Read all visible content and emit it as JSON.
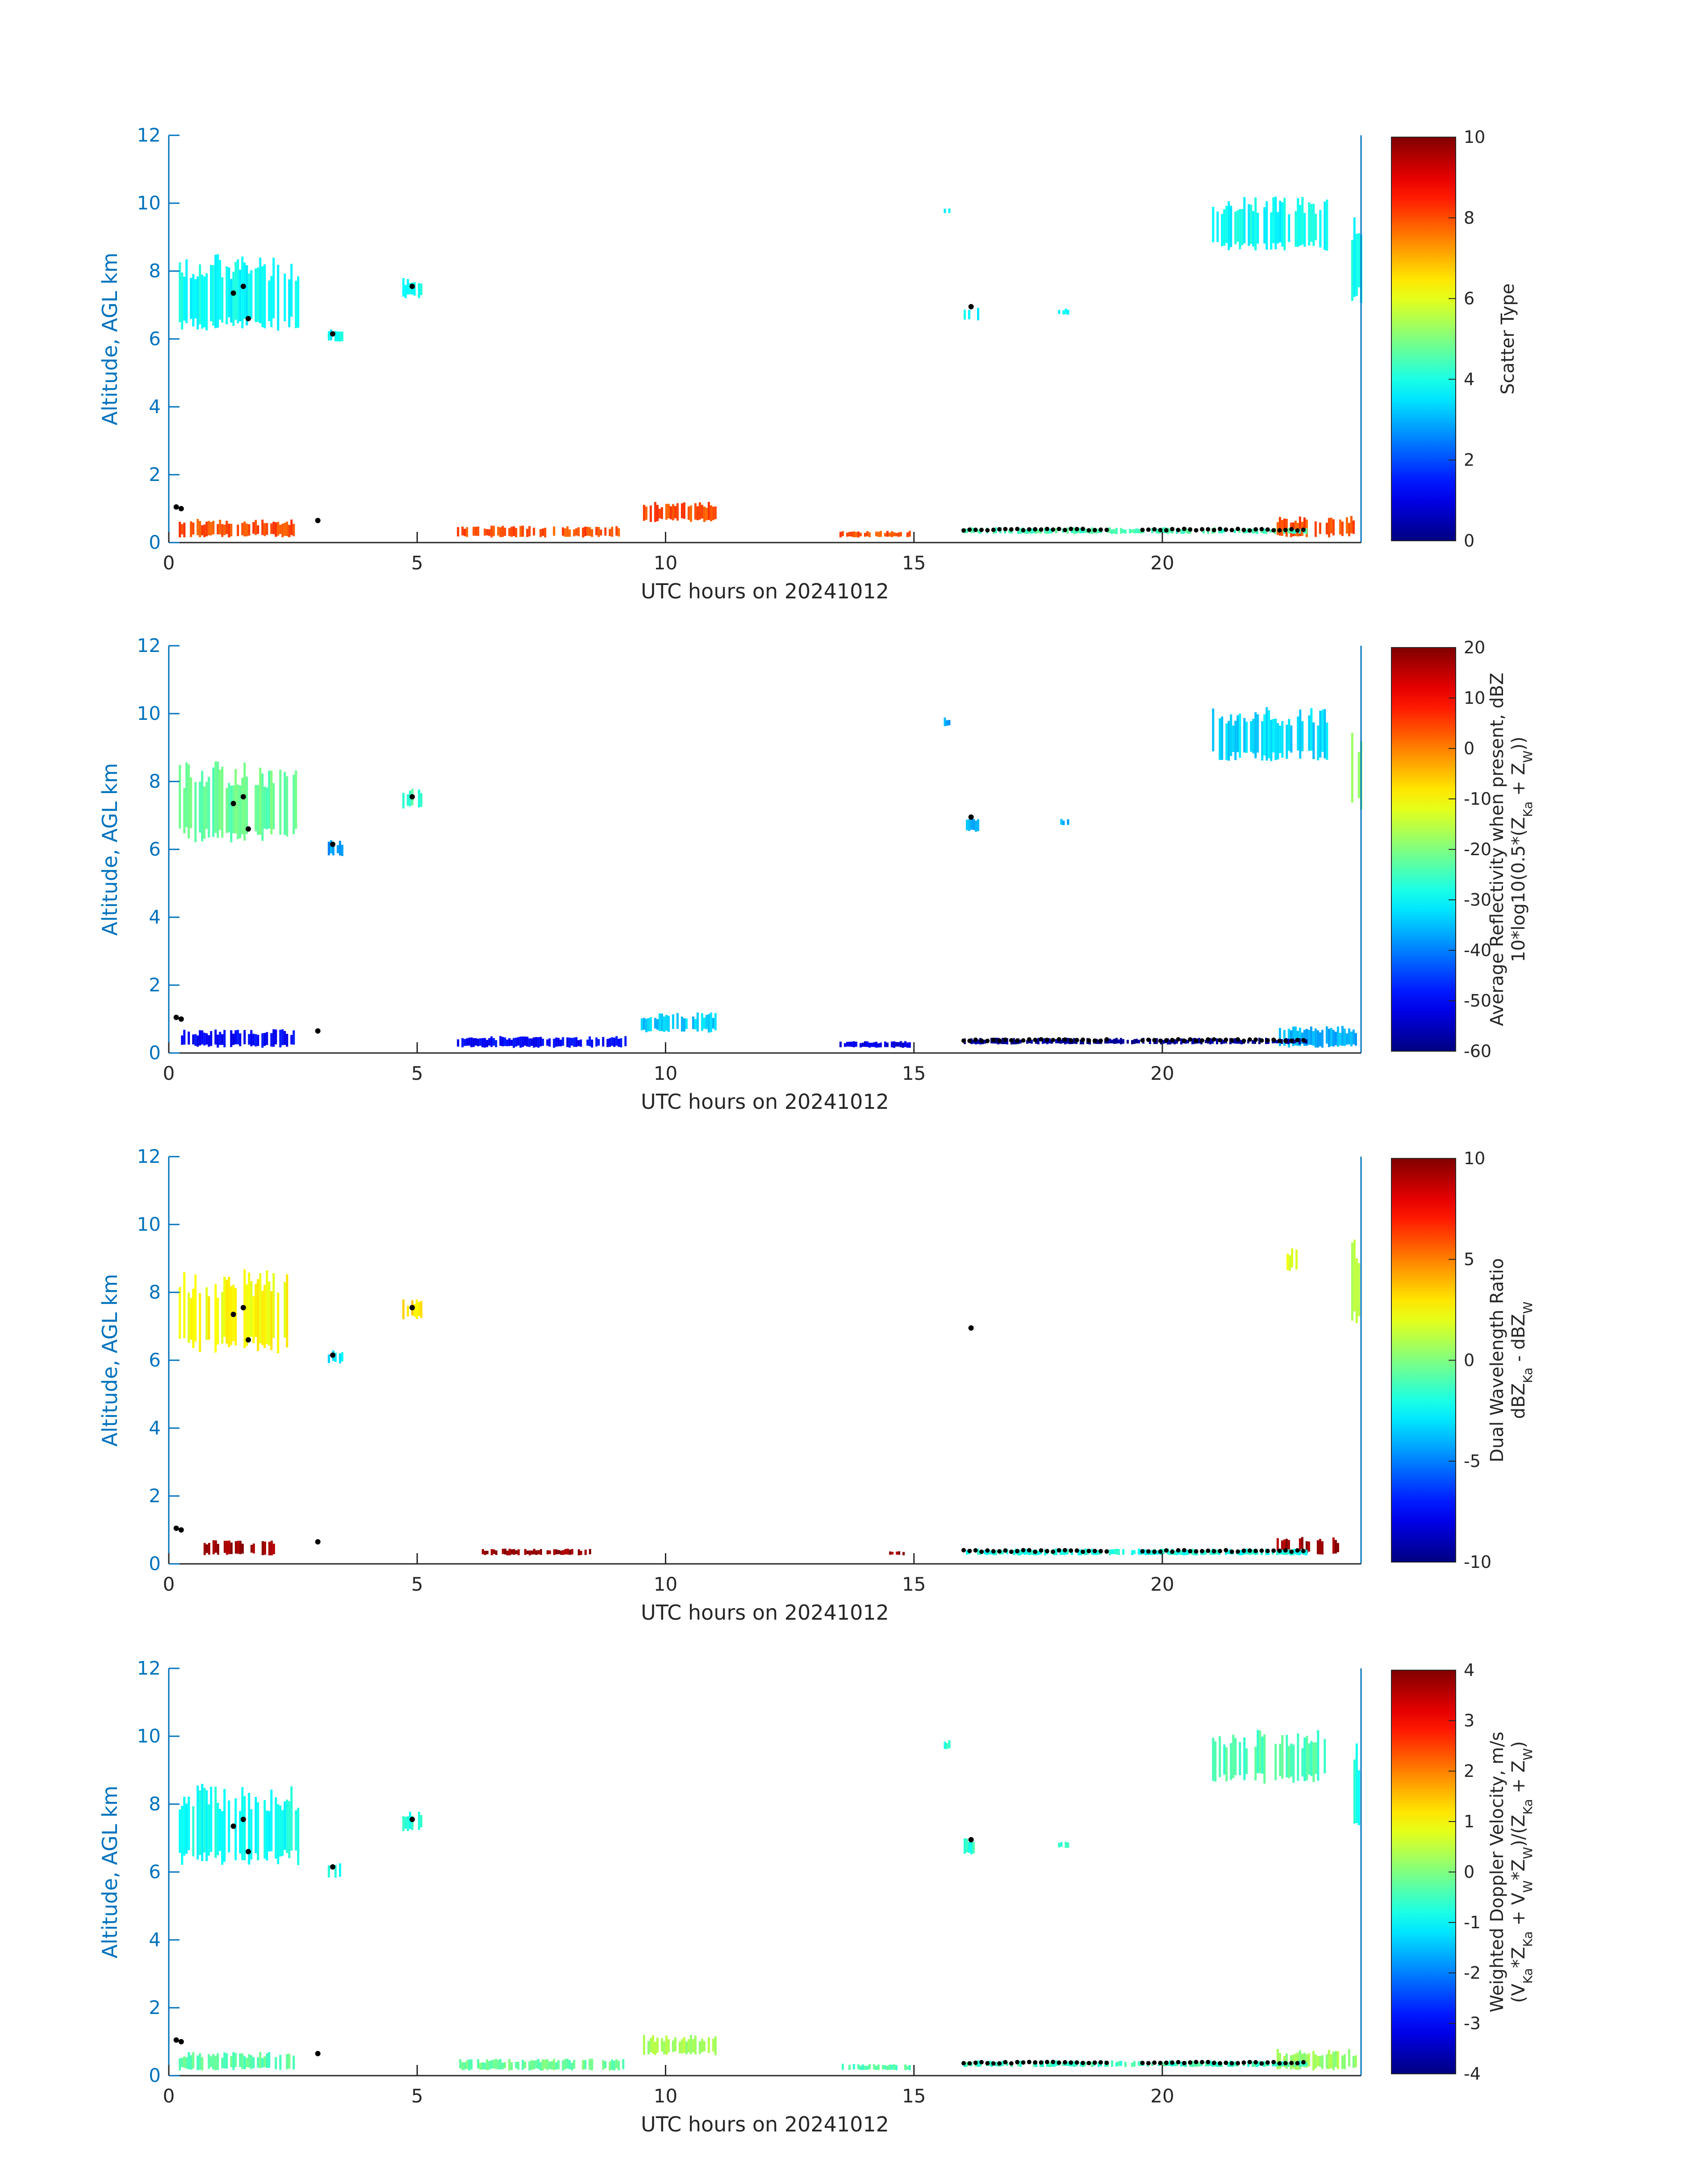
{
  "figure": {
    "xlabel": "UTC hours on 20241012",
    "ylabel": "Altitude, AGL km",
    "axis_color": "#0072BD"
  },
  "chart_data": [
    {
      "type": "heatmap",
      "id": "scatter-type",
      "xlim": [
        0,
        24
      ],
      "ylim": [
        0,
        12
      ],
      "x_ticks": [
        0,
        5,
        10,
        15,
        20
      ],
      "y_ticks": [
        0,
        2,
        4,
        6,
        8,
        10,
        12
      ],
      "xlabel": "UTC hours on 20241012",
      "ylabel": "Altitude, AGL km",
      "colorbar": {
        "min": 0,
        "max": 10,
        "ticks": [
          0,
          2,
          4,
          6,
          8,
          10
        ],
        "label_lines": [
          "Scatter Type"
        ]
      },
      "regions": [
        {
          "t": [
            0.2,
            2.6
          ],
          "z": [
            6.2,
            8.5
          ],
          "value": 3.8
        },
        {
          "t": [
            3.2,
            3.5
          ],
          "z": [
            5.9,
            6.3
          ],
          "value": 3.8
        },
        {
          "t": [
            4.7,
            5.1
          ],
          "z": [
            7.2,
            7.8
          ],
          "value": 3.8
        },
        {
          "t": [
            15.6,
            15.7
          ],
          "z": [
            9.7,
            9.9
          ],
          "value": 3.8
        },
        {
          "t": [
            16.0,
            16.3
          ],
          "z": [
            6.5,
            7.0
          ],
          "value": 3.8
        },
        {
          "t": [
            17.9,
            18.1
          ],
          "z": [
            6.7,
            6.9
          ],
          "value": 3.8
        },
        {
          "t": [
            21.0,
            23.3
          ],
          "z": [
            8.6,
            10.2
          ],
          "value": 3.8
        },
        {
          "t": [
            23.8,
            24.0
          ],
          "z": [
            7.0,
            9.8
          ],
          "value": 3.8
        },
        {
          "t": [
            0.2,
            2.5
          ],
          "z": [
            0.15,
            0.7
          ],
          "value": 8.0
        },
        {
          "t": [
            5.8,
            9.2
          ],
          "z": [
            0.15,
            0.5
          ],
          "value": 8.0
        },
        {
          "t": [
            9.5,
            11.0
          ],
          "z": [
            0.6,
            1.2
          ],
          "value": 8.0
        },
        {
          "t": [
            13.5,
            14.9
          ],
          "z": [
            0.15,
            0.35
          ],
          "value": 8.0
        },
        {
          "t": [
            22.3,
            23.9
          ],
          "z": [
            0.15,
            0.8
          ],
          "value": 8.0
        },
        {
          "t": [
            16.0,
            22.9
          ],
          "z": [
            0.25,
            0.45
          ],
          "value": 4.5
        }
      ]
    },
    {
      "type": "heatmap",
      "id": "average-reflectivity",
      "xlim": [
        0,
        24
      ],
      "ylim": [
        0,
        12
      ],
      "x_ticks": [
        0,
        5,
        10,
        15,
        20
      ],
      "y_ticks": [
        0,
        2,
        4,
        6,
        8,
        10,
        12
      ],
      "xlabel": "UTC hours on 20241012",
      "ylabel": "Altitude, AGL km",
      "colorbar": {
        "min": -60,
        "max": 20,
        "ticks": [
          -60,
          -50,
          -40,
          -30,
          -20,
          -10,
          0,
          10,
          20
        ],
        "label_lines": [
          "Average Reflectivity when present, dBZ",
          "10*log10(0.5*(Z_Ka + Z_W))"
        ]
      },
      "regions": [
        {
          "t": [
            0.2,
            2.6
          ],
          "z": [
            6.2,
            8.6
          ],
          "value": -22
        },
        {
          "t": [
            3.2,
            3.5
          ],
          "z": [
            5.8,
            6.3
          ],
          "value": -38
        },
        {
          "t": [
            4.7,
            5.1
          ],
          "z": [
            7.2,
            7.8
          ],
          "value": -25
        },
        {
          "t": [
            15.6,
            15.7
          ],
          "z": [
            9.6,
            9.9
          ],
          "value": -36
        },
        {
          "t": [
            16.0,
            16.3
          ],
          "z": [
            6.5,
            7.0
          ],
          "value": -36
        },
        {
          "t": [
            17.9,
            18.1
          ],
          "z": [
            6.7,
            6.9
          ],
          "value": -36
        },
        {
          "t": [
            21.0,
            23.3
          ],
          "z": [
            8.6,
            10.2
          ],
          "value": -33
        },
        {
          "t": [
            23.8,
            24.0
          ],
          "z": [
            7.0,
            9.8
          ],
          "value": -20
        },
        {
          "t": [
            0.2,
            2.5
          ],
          "z": [
            0.15,
            0.7
          ],
          "value": -50
        },
        {
          "t": [
            5.8,
            9.2
          ],
          "z": [
            0.15,
            0.5
          ],
          "value": -50
        },
        {
          "t": [
            9.5,
            11.0
          ],
          "z": [
            0.6,
            1.2
          ],
          "value": -34
        },
        {
          "t": [
            13.5,
            14.9
          ],
          "z": [
            0.15,
            0.35
          ],
          "value": -52
        },
        {
          "t": [
            22.3,
            23.9
          ],
          "z": [
            0.15,
            0.8
          ],
          "value": -36
        },
        {
          "t": [
            16.0,
            22.9
          ],
          "z": [
            0.25,
            0.45
          ],
          "value": -58
        }
      ]
    },
    {
      "type": "heatmap",
      "id": "dual-wavelength-ratio",
      "xlim": [
        0,
        24
      ],
      "ylim": [
        0,
        12
      ],
      "x_ticks": [
        0,
        5,
        10,
        15,
        20
      ],
      "y_ticks": [
        0,
        2,
        4,
        6,
        8,
        10,
        12
      ],
      "xlabel": "UTC hours on 20241012",
      "ylabel": "Altitude, AGL km",
      "colorbar": {
        "min": -10,
        "max": 10,
        "ticks": [
          -10,
          -5,
          0,
          5,
          10
        ],
        "label_lines": [
          "Dual Wavelength Ratio",
          "dBZ_Ka - dBZ_W"
        ]
      },
      "regions": [
        {
          "t": [
            0.2,
            2.4
          ],
          "z": [
            6.2,
            8.7
          ],
          "value": 2.5
        },
        {
          "t": [
            3.2,
            3.5
          ],
          "z": [
            5.9,
            6.3
          ],
          "value": -3
        },
        {
          "t": [
            4.7,
            5.1
          ],
          "z": [
            7.2,
            7.8
          ],
          "value": 3
        },
        {
          "t": [
            22.5,
            22.7
          ],
          "z": [
            8.6,
            9.3
          ],
          "value": 2
        },
        {
          "t": [
            23.8,
            24.0
          ],
          "z": [
            7.0,
            9.6
          ],
          "value": 1
        },
        {
          "t": [
            0.7,
            2.1
          ],
          "z": [
            0.25,
            0.7
          ],
          "value": 9.5
        },
        {
          "t": [
            6.3,
            8.5
          ],
          "z": [
            0.25,
            0.45
          ],
          "value": 9.5
        },
        {
          "t": [
            14.5,
            14.8
          ],
          "z": [
            0.25,
            0.4
          ],
          "value": 9.5
        },
        {
          "t": [
            22.3,
            23.6
          ],
          "z": [
            0.25,
            0.8
          ],
          "value": 9.5
        },
        {
          "t": [
            16.0,
            22.9
          ],
          "z": [
            0.25,
            0.45
          ],
          "value": -2
        }
      ]
    },
    {
      "type": "heatmap",
      "id": "weighted-doppler-velocity",
      "xlim": [
        0,
        24
      ],
      "ylim": [
        0,
        12
      ],
      "x_ticks": [
        0,
        5,
        10,
        15,
        20
      ],
      "y_ticks": [
        0,
        2,
        4,
        6,
        8,
        10,
        12
      ],
      "xlabel": "UTC hours on 20241012",
      "ylabel": "Altitude, AGL km",
      "colorbar": {
        "min": -4,
        "max": 4,
        "ticks": [
          -4,
          -3,
          -2,
          -1,
          0,
          1,
          2,
          3,
          4
        ],
        "label_lines": [
          "Weighted Doppler Velocity, m/s",
          "(V_Ka*Z_Ka + V_W*Z_W)/(Z_Ka + Z_W)"
        ]
      },
      "regions": [
        {
          "t": [
            0.2,
            2.6
          ],
          "z": [
            6.2,
            8.6
          ],
          "value": -0.9
        },
        {
          "t": [
            3.2,
            3.5
          ],
          "z": [
            5.8,
            6.3
          ],
          "value": -0.9
        },
        {
          "t": [
            4.7,
            5.1
          ],
          "z": [
            7.2,
            7.8
          ],
          "value": -0.7
        },
        {
          "t": [
            15.6,
            15.7
          ],
          "z": [
            9.6,
            9.9
          ],
          "value": -0.6
        },
        {
          "t": [
            16.0,
            16.3
          ],
          "z": [
            6.5,
            7.0
          ],
          "value": -0.6
        },
        {
          "t": [
            17.9,
            18.1
          ],
          "z": [
            6.7,
            6.9
          ],
          "value": -0.6
        },
        {
          "t": [
            21.0,
            23.3
          ],
          "z": [
            8.6,
            10.2
          ],
          "value": -0.4
        },
        {
          "t": [
            23.8,
            24.0
          ],
          "z": [
            7.0,
            9.8
          ],
          "value": -0.8
        },
        {
          "t": [
            0.2,
            2.5
          ],
          "z": [
            0.15,
            0.7
          ],
          "value": -0.3
        },
        {
          "t": [
            5.8,
            9.2
          ],
          "z": [
            0.15,
            0.5
          ],
          "value": -0.2
        },
        {
          "t": [
            9.5,
            11.0
          ],
          "z": [
            0.6,
            1.2
          ],
          "value": 0.3
        },
        {
          "t": [
            13.5,
            14.9
          ],
          "z": [
            0.15,
            0.35
          ],
          "value": -0.4
        },
        {
          "t": [
            22.3,
            23.9
          ],
          "z": [
            0.15,
            0.8
          ],
          "value": 0.2
        },
        {
          "t": [
            16.0,
            22.9
          ],
          "z": [
            0.25,
            0.45
          ],
          "value": -0.5
        }
      ]
    }
  ]
}
